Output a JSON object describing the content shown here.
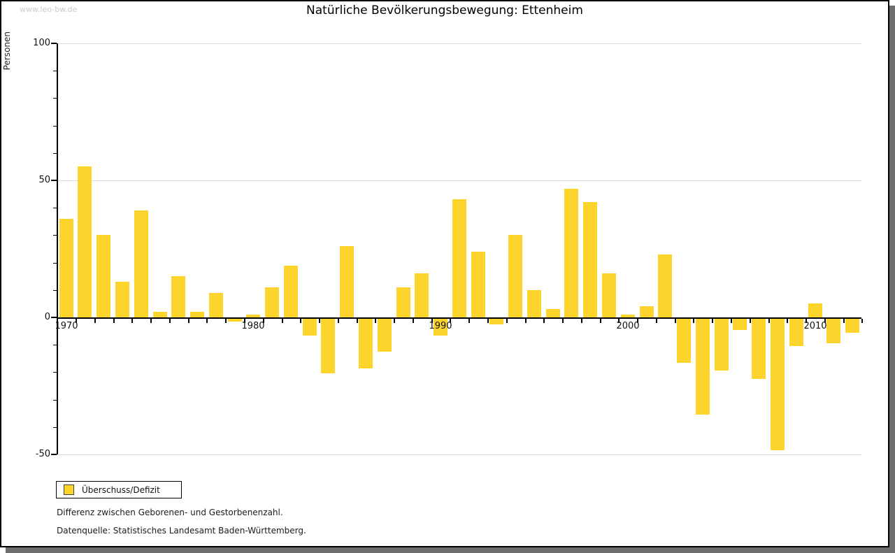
{
  "page": {
    "watermark": "www.leo-bw.de",
    "title": "Natürliche Bevölkerungsbewegung: Ettenheim"
  },
  "legend": {
    "label": "Überschuss/Defizit"
  },
  "footnotes": {
    "line1": "Differenz zwischen Geborenen- und Gestorbenenzahl.",
    "line2": "Datenquelle: Statistisches Landesamt Baden-Württemberg."
  },
  "colors": {
    "bar": "#fcd42c",
    "grid": "#dbdbdb",
    "axis": "#000000",
    "watermark": "#cbcbcb",
    "shadow": "#6e6e6e",
    "text": "#1a1a1a"
  },
  "chart_data": {
    "type": "bar",
    "title": "Natürliche Bevölkerungsbewegung: Ettenheim",
    "xlabel": "",
    "ylabel": "Personen",
    "ylim": [
      -50,
      100
    ],
    "y_ticks_labeled": [
      100,
      50,
      0,
      -50
    ],
    "y_minor_tick_step": 10,
    "x_ticks_labeled": [
      1970,
      1980,
      1990,
      2000,
      2010
    ],
    "grid": "horizontal-light-gray",
    "legend_position": "bottom-left",
    "categories": [
      1970,
      1971,
      1972,
      1973,
      1974,
      1975,
      1976,
      1977,
      1978,
      1979,
      1980,
      1981,
      1982,
      1983,
      1984,
      1985,
      1986,
      1987,
      1988,
      1989,
      1990,
      1991,
      1992,
      1993,
      1994,
      1995,
      1996,
      1997,
      1998,
      1999,
      2000,
      2001,
      2002,
      2003,
      2004,
      2005,
      2006,
      2007,
      2008,
      2009,
      2010,
      2011,
      2012
    ],
    "series": [
      {
        "name": "Überschuss/Defizit",
        "color": "#fcd42c",
        "values": [
          36,
          55,
          30,
          13,
          39,
          2,
          15,
          2,
          9,
          -1,
          1,
          11,
          19,
          -6,
          -20,
          26,
          -18,
          -12,
          11,
          16,
          -6,
          43,
          24,
          -2,
          30,
          10,
          3,
          47,
          42,
          16,
          1,
          4,
          23,
          -16,
          -35,
          -19,
          -4,
          -22,
          -48,
          -10,
          5,
          -9,
          -5
        ]
      }
    ]
  }
}
